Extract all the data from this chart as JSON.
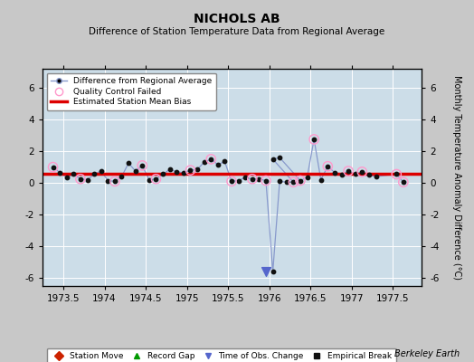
{
  "title": "NICHOLS AB",
  "subtitle": "Difference of Station Temperature Data from Regional Average",
  "ylabel": "Monthly Temperature Anomaly Difference (°C)",
  "xlabel_credit": "Berkeley Earth",
  "xlim": [
    1973.25,
    1977.85
  ],
  "ylim": [
    -6.5,
    7.2
  ],
  "yticks": [
    -6,
    -4,
    -2,
    0,
    2,
    4,
    6
  ],
  "xticks": [
    1973.5,
    1974,
    1974.5,
    1975,
    1975.5,
    1976,
    1976.5,
    1977,
    1977.5
  ],
  "bias_line_y": 0.55,
  "fig_bg_color": "#c8c8c8",
  "plot_bg_color": "#ccdde8",
  "line_color": "#8899cc",
  "dot_color": "#111111",
  "qc_color": "#ff99cc",
  "bias_color": "#dd0000",
  "times": [
    1973.375,
    1973.458,
    1973.542,
    1973.625,
    1973.708,
    1973.792,
    1973.875,
    1973.958,
    1974.042,
    1974.125,
    1974.208,
    1974.292,
    1974.375,
    1974.458,
    1974.542,
    1974.625,
    1974.708,
    1974.792,
    1974.875,
    1974.958,
    1975.042,
    1975.125,
    1975.208,
    1975.292,
    1975.375,
    1975.458,
    1975.542,
    1975.625,
    1975.708,
    1975.792,
    1975.875,
    1976.042,
    1976.125,
    1976.375,
    1976.458,
    1976.542,
    1976.625,
    1976.708,
    1976.792,
    1976.875,
    1976.958,
    1977.042,
    1977.125,
    1977.208,
    1977.292,
    1977.542,
    1977.625
  ],
  "values": [
    1.0,
    0.65,
    0.35,
    0.55,
    0.25,
    0.2,
    0.55,
    0.75,
    0.15,
    0.1,
    0.4,
    1.25,
    0.75,
    1.1,
    0.2,
    0.25,
    0.55,
    0.85,
    0.7,
    0.65,
    0.8,
    0.85,
    1.3,
    1.5,
    1.15,
    1.35,
    0.1,
    0.15,
    0.35,
    0.25,
    0.25,
    1.5,
    1.6,
    0.15,
    0.35,
    2.75,
    0.2,
    1.05,
    0.65,
    0.5,
    0.75,
    0.55,
    0.7,
    0.5,
    0.4,
    0.55,
    0.05
  ],
  "qc_failed_indices": [
    0,
    4,
    9,
    13,
    15,
    20,
    23,
    26,
    29,
    33,
    35,
    37,
    40,
    42,
    45,
    46
  ],
  "dip_times": [
    1975.958,
    1976.042,
    1976.125,
    1976.208,
    1976.292
  ],
  "dip_values": [
    0.15,
    -5.6,
    0.1,
    0.05,
    0.05
  ],
  "dip_qc_indices": [
    0,
    4
  ],
  "obs_change_marker_time": 1975.958,
  "obs_change_marker_value": -5.6
}
